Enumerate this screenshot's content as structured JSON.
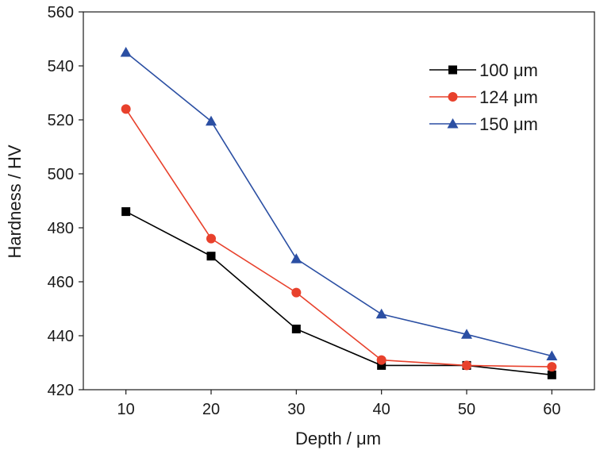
{
  "chart_data": {
    "type": "line",
    "title": "",
    "xlabel": "Depth / μm",
    "ylabel": "Hardness / HV",
    "x": [
      10,
      20,
      30,
      40,
      50,
      60
    ],
    "xlim": [
      5,
      65
    ],
    "ylim": [
      420,
      560
    ],
    "xticks": [
      10,
      20,
      30,
      40,
      50,
      60
    ],
    "yticks": [
      420,
      440,
      460,
      480,
      500,
      520,
      540,
      560
    ],
    "grid": false,
    "legend_position": "top-right",
    "series": [
      {
        "name": "100 μm",
        "color": "#000000",
        "marker": "square",
        "values": [
          486,
          469.5,
          442.5,
          429,
          429,
          425.5
        ]
      },
      {
        "name": "124 μm",
        "color": "#e8412c",
        "marker": "circle",
        "values": [
          524,
          476,
          456,
          431,
          429,
          428.5
        ]
      },
      {
        "name": "150 μm",
        "color": "#2b4fa3",
        "marker": "triangle",
        "values": [
          545,
          519.5,
          468.5,
          448,
          440.5,
          432.5
        ]
      }
    ]
  }
}
